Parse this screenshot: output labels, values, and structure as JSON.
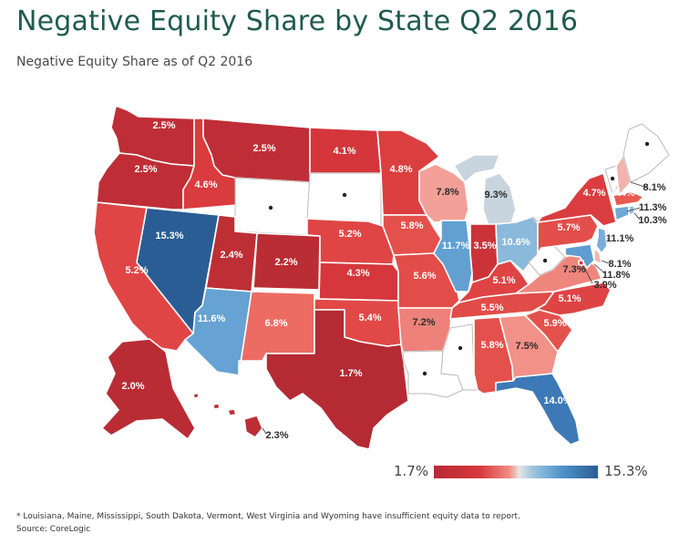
{
  "title": "Negative Equity Share by State Q2 2016",
  "subtitle": "Negative Equity Share as of Q2 2016",
  "legend": {
    "min_label": "1.7%",
    "max_label": "15.3%",
    "min_value": 1.7,
    "max_value": 15.3
  },
  "footnote": "*  Louisiana, Maine, Mississippi, South Dakota, Vermont, West Virginia and Wyoming have insufficient equity data to report.",
  "source": "Source: CoreLogic",
  "colors": {
    "low": "#b52a33",
    "mid": "#e9e4e2",
    "high": "#2a5d94",
    "no_data": "#ffffff",
    "border": "#ffffff",
    "title": "#1f5c4a"
  },
  "states": [
    {
      "id": "WA",
      "label": "2.5%",
      "value": 2.5
    },
    {
      "id": "OR",
      "label": "2.5%",
      "value": 2.5
    },
    {
      "id": "CA",
      "label": "5.2%",
      "value": 5.2
    },
    {
      "id": "ID",
      "label": "4.6%",
      "value": 4.6
    },
    {
      "id": "NV",
      "label": "15.3%",
      "value": 15.3
    },
    {
      "id": "MT",
      "label": "2.5%",
      "value": 2.5
    },
    {
      "id": "WY",
      "label": "",
      "value": null
    },
    {
      "id": "UT",
      "label": "2.4%",
      "value": 2.4
    },
    {
      "id": "AZ",
      "label": "11.6%",
      "value": 11.6
    },
    {
      "id": "CO",
      "label": "2.2%",
      "value": 2.2
    },
    {
      "id": "NM",
      "label": "6.8%",
      "value": 6.8
    },
    {
      "id": "ND",
      "label": "4.1%",
      "value": 4.1
    },
    {
      "id": "SD",
      "label": "",
      "value": null
    },
    {
      "id": "NE",
      "label": "5.2%",
      "value": 5.2
    },
    {
      "id": "KS",
      "label": "4.3%",
      "value": 4.3
    },
    {
      "id": "OK",
      "label": "5.4%",
      "value": 5.4
    },
    {
      "id": "TX",
      "label": "1.7%",
      "value": 1.7
    },
    {
      "id": "MN",
      "label": "4.8%",
      "value": 4.8
    },
    {
      "id": "IA",
      "label": "5.8%",
      "value": 5.8
    },
    {
      "id": "MO",
      "label": "5.6%",
      "value": 5.6
    },
    {
      "id": "AR",
      "label": "7.2%",
      "value": 7.2
    },
    {
      "id": "LA",
      "label": "",
      "value": null
    },
    {
      "id": "WI",
      "label": "7.8%",
      "value": 7.8
    },
    {
      "id": "IL",
      "label": "11.7%",
      "value": 11.7
    },
    {
      "id": "MS",
      "label": "",
      "value": null
    },
    {
      "id": "MI",
      "label": "9.3%",
      "value": 9.3
    },
    {
      "id": "IN",
      "label": "3.5%",
      "value": 3.5
    },
    {
      "id": "KY",
      "label": "5.1%",
      "value": 5.1
    },
    {
      "id": "TN",
      "label": "5.5%",
      "value": 5.5
    },
    {
      "id": "AL",
      "label": "5.8%",
      "value": 5.8
    },
    {
      "id": "OH",
      "label": "10.6%",
      "value": 10.6
    },
    {
      "id": "GA",
      "label": "7.5%",
      "value": 7.5
    },
    {
      "id": "FL",
      "label": "14.0%",
      "value": 14.0
    },
    {
      "id": "SC",
      "label": "5.9%",
      "value": 5.9
    },
    {
      "id": "NC",
      "label": "5.1%",
      "value": 5.1
    },
    {
      "id": "VA",
      "label": "7.3%",
      "value": 7.3
    },
    {
      "id": "WV",
      "label": "",
      "value": null
    },
    {
      "id": "PA",
      "label": "5.7%",
      "value": 5.7
    },
    {
      "id": "NY",
      "label": "4.7%",
      "value": 4.7
    },
    {
      "id": "VT",
      "label": "",
      "value": null
    },
    {
      "id": "NH",
      "label": "8.1%",
      "value": 8.1
    },
    {
      "id": "ME",
      "label": "",
      "value": null
    },
    {
      "id": "MA",
      "label": "6.4%",
      "value": 6.4
    },
    {
      "id": "CT",
      "label": "11.3%",
      "value": 11.3
    },
    {
      "id": "RI",
      "label": "10.3%",
      "value": 10.3
    },
    {
      "id": "NJ",
      "label": "11.1%",
      "value": 11.1
    },
    {
      "id": "DE",
      "label": "8.1%",
      "value": 8.1
    },
    {
      "id": "MD",
      "label": "11.8%",
      "value": 11.8
    },
    {
      "id": "DC",
      "label": "3.9%",
      "value": 3.9
    },
    {
      "id": "AK",
      "label": "2.0%",
      "value": 2.0
    },
    {
      "id": "HI",
      "label": "2.3%",
      "value": 2.3
    }
  ]
}
